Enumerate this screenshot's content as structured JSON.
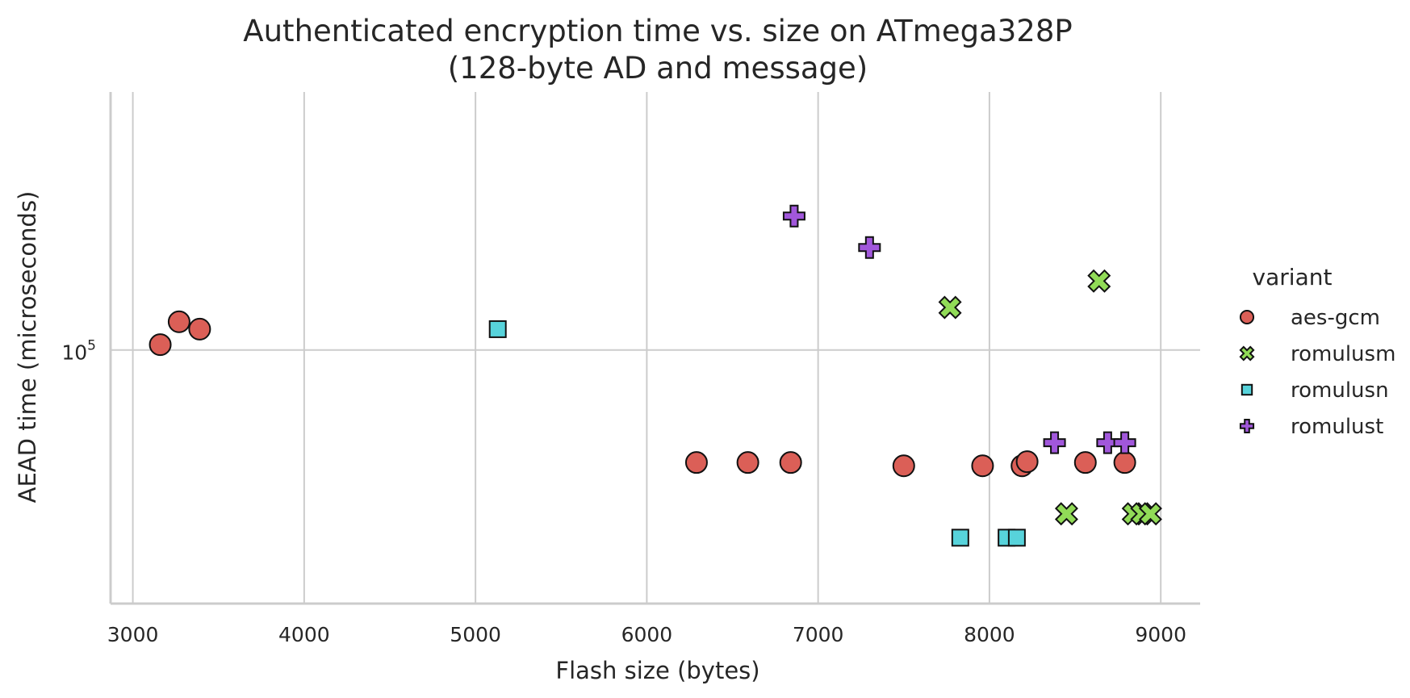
{
  "chart_data": {
    "type": "scatter",
    "title": "Authenticated encryption time vs. size on ATmega328P",
    "subtitle": "(128-byte AD and message)",
    "xlabel": "Flash size (bytes)",
    "ylabel": "AEAD time (microseconds)",
    "xlim": [
      2870,
      9230
    ],
    "x_ticks": [
      3000,
      4000,
      5000,
      6000,
      7000,
      8000,
      9000
    ],
    "yscale": "log",
    "ylim": [
      39200,
      259300
    ],
    "y_ticks": [
      100000
    ],
    "y_tick_labels": [
      {
        "base": "10",
        "exp": "5"
      }
    ],
    "grid": true,
    "legend": {
      "title": "variant",
      "placement": "right"
    },
    "series": [
      {
        "name": "aes-gcm",
        "marker": "circle",
        "color": "#db5f57",
        "points": [
          [
            3160,
            102000
          ],
          [
            3270,
            111000
          ],
          [
            3390,
            108000
          ],
          [
            6290,
            66000
          ],
          [
            6590,
            66000
          ],
          [
            6840,
            66000
          ],
          [
            7500,
            65200
          ],
          [
            7960,
            65200
          ],
          [
            8190,
            65200
          ],
          [
            8220,
            66200
          ],
          [
            8560,
            66000
          ],
          [
            8790,
            66000
          ]
        ]
      },
      {
        "name": "romulusm",
        "marker": "x",
        "color": "#91db57",
        "points": [
          [
            7770,
            117000
          ],
          [
            8640,
            129000
          ],
          [
            8450,
            54600
          ],
          [
            8840,
            54600
          ],
          [
            8890,
            54600
          ],
          [
            8940,
            54600
          ]
        ]
      },
      {
        "name": "romulusn",
        "marker": "square",
        "color": "#57d3db",
        "points": [
          [
            5130,
            108000
          ],
          [
            7830,
            50000
          ],
          [
            8100,
            50000
          ],
          [
            8160,
            50000
          ]
        ]
      },
      {
        "name": "romulust",
        "marker": "plus",
        "color": "#a157db",
        "points": [
          [
            6860,
            164000
          ],
          [
            7300,
            146000
          ],
          [
            8380,
            71000
          ],
          [
            8690,
            71000
          ],
          [
            8790,
            71000
          ]
        ]
      }
    ]
  }
}
